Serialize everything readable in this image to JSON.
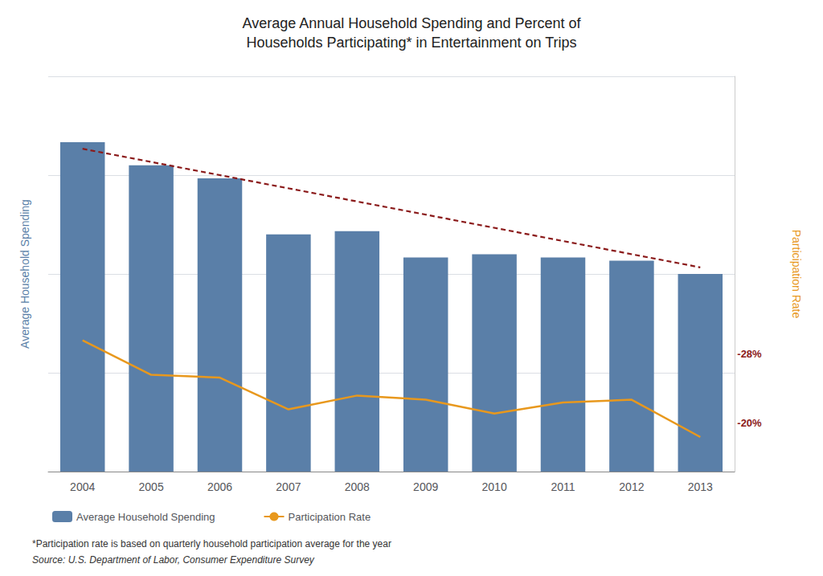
{
  "chart_data": {
    "type": "bar",
    "title": "Average Annual Household Spending and Percent of\nHouseholds Participating* in Entertainment on Trips",
    "categories": [
      "2004",
      "2005",
      "2006",
      "2007",
      "2008",
      "2009",
      "2010",
      "2011",
      "2012",
      "2013"
    ],
    "series": [
      {
        "name": "Average Household Spending",
        "type": "bar",
        "color": "#5a7fa8",
        "values": [
          100,
          93,
          89,
          72,
          73,
          65,
          66,
          65,
          64,
          60
        ]
      },
      {
        "name": "Participation Rate",
        "type": "line",
        "color": "#e8981d",
        "axis": "y2",
        "values": [
          29.5,
          27.0,
          26.8,
          24.5,
          25.5,
          25.2,
          24.2,
          25.0,
          25.2,
          22.5
        ]
      }
    ],
    "trendline": {
      "start": 98,
      "end": 62,
      "color": "#8b1a1a",
      "line_style": "dashed"
    },
    "ylabel": "Average Household Spending",
    "y2label": "Participation Rate",
    "ylim": [
      0,
      120
    ],
    "yticks": [
      0,
      30,
      60,
      90,
      120
    ],
    "y2lim": [
      20,
      48.6
    ],
    "grid": true,
    "tick_labels": "x",
    "legend": "lower left",
    "annotations": [
      {
        "text": "-28%",
        "y": 28.5,
        "axis": "y2",
        "color": "#8b1a1a"
      },
      {
        "text": "-20%",
        "y": 23.5,
        "axis": "y2",
        "color": "#8b1a1a"
      }
    ],
    "footnotes": [
      "*Participation rate is based on quarterly household participation average for the year",
      "Source: U.S. Department of Labor, Consumer Expenditure Survey"
    ]
  }
}
